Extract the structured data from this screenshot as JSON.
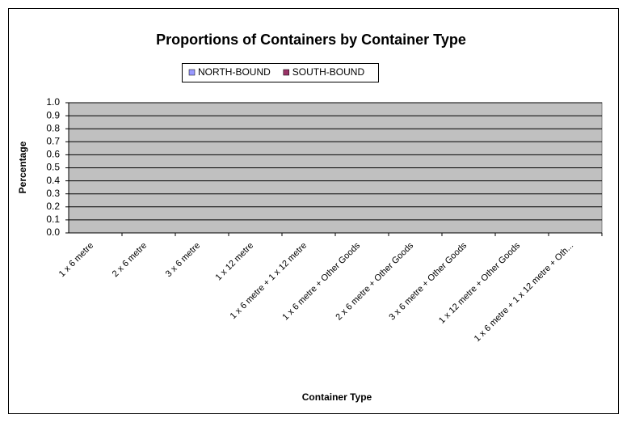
{
  "chart_data": {
    "type": "bar",
    "title": "Proportions of Containers by Container Type",
    "x_label": "Container Type",
    "y_label": "Percentage",
    "categories": [
      "1 x 6 metre",
      "2 x 6 metre",
      "3 x 6 metre",
      "1 x 12 metre",
      "1 x 6 metre + 1 x 12 metre",
      "1 x 6 metre + Other Goods",
      "2 x 6 metre + Other Goods",
      "3 x 6 metre + Other Goods",
      "1 x 12 metre + Other Goods",
      "1 x 6 metre + 1 x 12 metre + Oth..."
    ],
    "series": [
      {
        "name": "NORTH-BOUND",
        "color": "#9999ff",
        "values": [
          0,
          0,
          0,
          0,
          0,
          0,
          0,
          0,
          0,
          0
        ]
      },
      {
        "name": "SOUTH-BOUND",
        "color": "#993366",
        "values": [
          0,
          0,
          0,
          0,
          0,
          0,
          0,
          0,
          0,
          0
        ]
      }
    ],
    "ylim": [
      0,
      1
    ],
    "yticks": [
      {
        "value": 0,
        "label": "0.0"
      },
      0.1,
      0.2,
      0.3,
      0.4,
      0.5,
      0.6,
      0.7,
      0.8,
      0.9,
      {
        "value": 1,
        "label": "1.0"
      }
    ],
    "grid": true,
    "legend": "top"
  }
}
